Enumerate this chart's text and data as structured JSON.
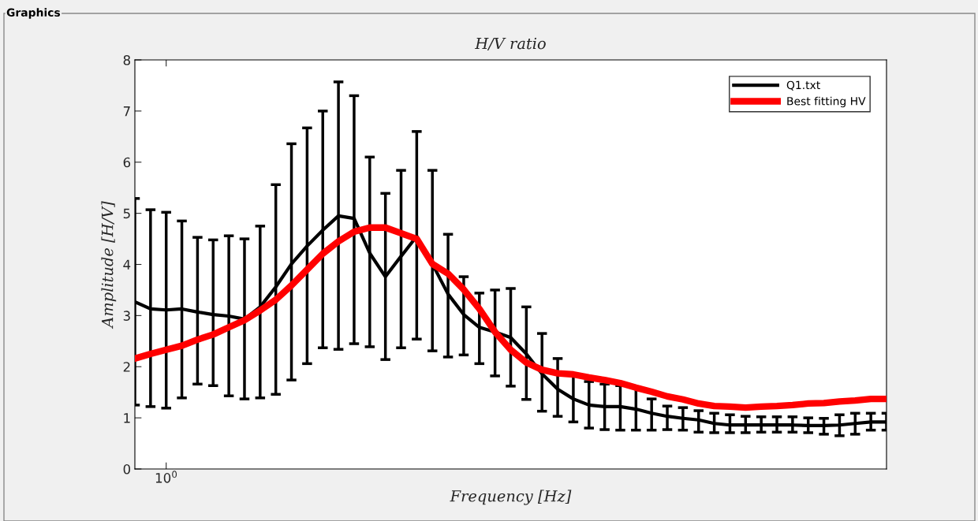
{
  "chart_data": {
    "type": "line",
    "title": "H/V ratio",
    "xlabel": "Frequency [Hz]",
    "ylabel": "Amplitude [H/V]",
    "annotations": [
      "Graphics"
    ],
    "categories": [
      null,
      null,
      "10$^{0}$",
      null,
      null,
      null,
      null,
      null,
      null,
      null,
      null,
      null,
      null,
      null,
      null,
      null,
      null,
      null,
      null,
      null,
      null,
      null,
      null,
      null,
      null,
      null,
      null,
      null,
      null,
      null,
      null,
      null,
      null,
      null,
      null,
      null,
      null,
      null,
      null,
      null,
      null,
      null,
      null,
      null,
      null,
      null,
      null,
      null,
      null
    ],
    "ylim": [
      0,
      8
    ],
    "yticks": [
      0,
      1,
      2,
      3,
      4,
      5,
      6,
      7,
      8
    ],
    "legend": "top right",
    "grid": false,
    "series": [
      {
        "name": "Q1.txt",
        "color": "#000000",
        "values": [
          3.27,
          3.13,
          3.11,
          3.13,
          3.07,
          3.02,
          2.99,
          2.93,
          3.17,
          3.56,
          4.01,
          4.36,
          4.67,
          4.95,
          4.9,
          4.22,
          3.76,
          4.16,
          4.55,
          4.01,
          3.42,
          3.02,
          2.77,
          2.68,
          2.57,
          2.25,
          1.86,
          1.56,
          1.37,
          1.25,
          1.22,
          1.22,
          1.17,
          1.09,
          1.03,
          0.99,
          0.96,
          0.89,
          0.86,
          0.86,
          0.86,
          0.86,
          0.86,
          0.85,
          0.85,
          0.86,
          0.89,
          0.92,
          0.92
        ],
        "errors": [
          [
            1.25,
            5.29
          ],
          [
            1.22,
            5.07
          ],
          [
            1.19,
            5.02
          ],
          [
            1.39,
            4.85
          ],
          [
            1.66,
            4.53
          ],
          [
            1.63,
            4.48
          ],
          [
            1.43,
            4.56
          ],
          [
            1.37,
            4.5
          ],
          [
            1.39,
            4.75
          ],
          [
            1.46,
            5.56
          ],
          [
            1.74,
            6.36
          ],
          [
            2.06,
            6.67
          ],
          [
            2.37,
            7.0
          ],
          [
            2.34,
            7.57
          ],
          [
            2.45,
            7.3
          ],
          [
            2.39,
            6.1
          ],
          [
            2.14,
            5.39
          ],
          [
            2.37,
            5.84
          ],
          [
            2.54,
            6.6
          ],
          [
            2.31,
            5.84
          ],
          [
            2.19,
            4.59
          ],
          [
            2.23,
            3.76
          ],
          [
            2.06,
            3.44
          ],
          [
            1.82,
            3.5
          ],
          [
            1.62,
            3.53
          ],
          [
            1.36,
            3.17
          ],
          [
            1.13,
            2.65
          ],
          [
            1.03,
            2.16
          ],
          [
            0.92,
            1.86
          ],
          [
            0.8,
            1.71
          ],
          [
            0.77,
            1.66
          ],
          [
            0.76,
            1.63
          ],
          [
            0.76,
            1.6
          ],
          [
            0.76,
            1.37
          ],
          [
            0.77,
            1.23
          ],
          [
            0.76,
            1.2
          ],
          [
            0.72,
            1.14
          ],
          [
            0.71,
            1.09
          ],
          [
            0.71,
            1.06
          ],
          [
            0.71,
            1.03
          ],
          [
            0.72,
            1.02
          ],
          [
            0.72,
            1.02
          ],
          [
            0.72,
            1.02
          ],
          [
            0.71,
            1.0
          ],
          [
            0.68,
            0.99
          ],
          [
            0.65,
            1.06
          ],
          [
            0.68,
            1.09
          ],
          [
            0.76,
            1.09
          ],
          [
            0.76,
            1.09
          ]
        ]
      },
      {
        "name": "Best fitting HV",
        "color": "#ff0000",
        "values": [
          2.16,
          2.25,
          2.33,
          2.41,
          2.53,
          2.63,
          2.77,
          2.91,
          3.1,
          3.31,
          3.59,
          3.9,
          4.21,
          4.45,
          4.64,
          4.72,
          4.72,
          4.61,
          4.5,
          4.01,
          3.82,
          3.51,
          3.13,
          2.68,
          2.33,
          2.08,
          1.94,
          1.87,
          1.85,
          1.79,
          1.74,
          1.68,
          1.59,
          1.51,
          1.42,
          1.36,
          1.28,
          1.23,
          1.22,
          1.2,
          1.22,
          1.23,
          1.25,
          1.28,
          1.29,
          1.32,
          1.34,
          1.37,
          1.37
        ]
      }
    ]
  }
}
